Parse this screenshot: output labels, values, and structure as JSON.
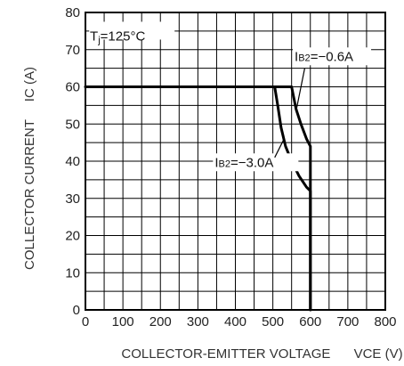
{
  "chart_data": {
    "type": "line",
    "xlabel": "COLLECTOR-EMITTER VOLTAGE",
    "xlabel_symbol": "VCE (V)",
    "ylabel": "COLLECTOR CURRENT",
    "ylabel_symbol": "IC (A)",
    "xlim": [
      0,
      800
    ],
    "ylim": [
      0,
      80
    ],
    "x_ticks": [
      0,
      100,
      200,
      300,
      400,
      500,
      600,
      700,
      800
    ],
    "y_ticks": [
      0,
      10,
      20,
      30,
      40,
      50,
      60,
      70,
      80
    ],
    "x_minor_step": 50,
    "y_minor_step": 5,
    "grid": true,
    "condition_label": "Tj=125°C",
    "series": [
      {
        "name": "IB2=-0.6A",
        "label_text": "IB2=−0.6A",
        "points": [
          [
            0,
            60
          ],
          [
            550,
            60
          ],
          [
            562,
            54
          ],
          [
            575,
            50
          ],
          [
            590,
            46
          ],
          [
            600,
            44
          ],
          [
            600,
            0
          ]
        ]
      },
      {
        "name": "IB2=-3.0A",
        "label_text": "IB2=−3.0A",
        "points": [
          [
            0,
            60
          ],
          [
            505,
            60
          ],
          [
            513,
            55
          ],
          [
            522,
            49
          ],
          [
            534,
            44
          ],
          [
            550,
            40
          ],
          [
            570,
            36
          ],
          [
            590,
            33
          ],
          [
            600,
            32
          ],
          [
            600,
            0
          ]
        ]
      }
    ]
  }
}
